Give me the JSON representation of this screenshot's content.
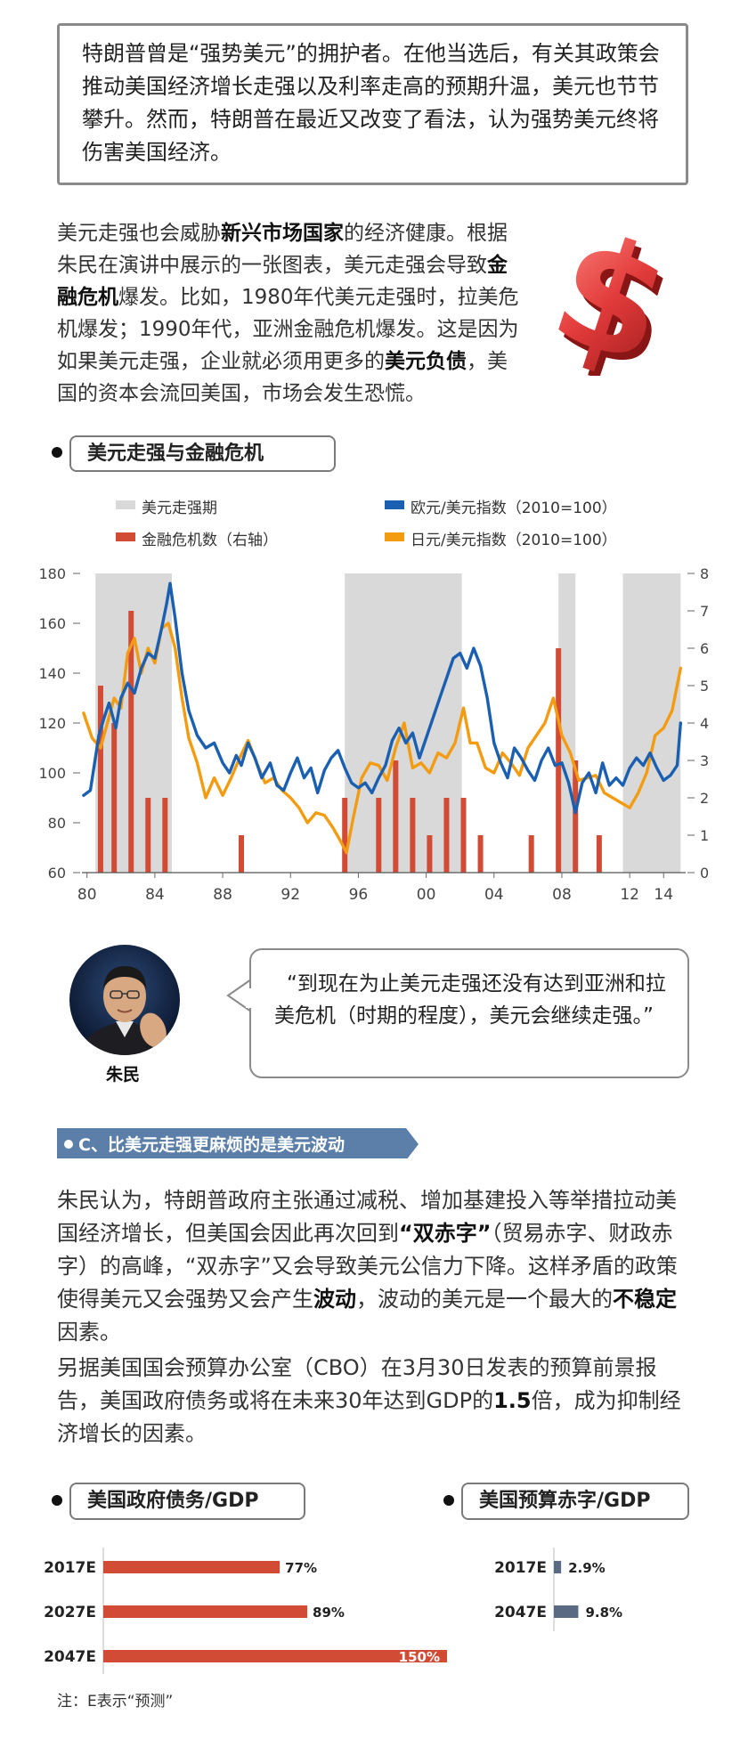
{
  "intro": {
    "text": "特朗普曾是“强势美元”的拥护者。在他当选后，有关其政策会推动美国经济增长走强以及利率走高的预期升温，美元也节节攀升。然而，特朗普在最近又改变了看法，认为强势美元终将伤害美国经济。"
  },
  "para1": {
    "s1": "美元走强也会威胁",
    "b1": "新兴市场国家",
    "s2": "的经济健康。根据朱民在演讲中展示的一张图表，美元走强会导致",
    "b2": "金融危机",
    "s3": "爆发。比如，1980年代美元走强时，拉美危机爆发；1990年代，亚洲金融危机爆发。这是因为如果美元走强，企业就必须用更多的",
    "b3": "美元负债",
    "s4": "，美国的资本会流回美国，市场会发生恐慌。"
  },
  "chart1_title": "美元走强与金融危机",
  "quote": {
    "text": "“到现在为止美元走强还没有达到亚洲和拉美危机（时期的程度），美元会继续走强。”",
    "name": "朱民"
  },
  "section_c": {
    "title": "C、比美元走强更麻烦的是美元波动"
  },
  "para2": {
    "s1": "朱民认为，特朗普政府主张通过减税、增加基建投入等举措拉动美国经济增长，但美国会因此再次回到",
    "b1": "“双赤字”",
    "s2": "（贸易赤字、财政赤字）的高峰，“双赤字”又会导致美元公信力下降。这样矛盾的政策使得美元又会强势又会产生",
    "b2": "波动",
    "s3": "，波动的美元是一个最大的",
    "b3": "不稳定",
    "s4": "因素。"
  },
  "para3": {
    "s1": "另据美国国会预算办公室（CBO）在3月30日发表的预算前景报告，美国政府债务或将在未来30年达到GDP的",
    "b1": "1.5",
    "s2": "倍，成为抑制经济增长的因素。"
  },
  "chart2_title": "美国政府债务/GDP",
  "chart3_title": "美国预算赤字/GDP",
  "note": "注：E表示“预测”",
  "colors": {
    "euro": "#1a5fb0",
    "yen": "#f39c12",
    "crisis": "#d14b35",
    "strong": "#d9d9d9",
    "banner": "#5b7fa8",
    "deficit": "#5a6a82"
  },
  "chart_data": [
    {
      "type": "line",
      "title": "美元走强与金融危机",
      "legend": [
        "美元走强期",
        "欧元/美元指数（2010=100）",
        "金融危机数（右轴）",
        "日元/美元指数（2010=100）"
      ],
      "x_ticks": [
        "80",
        "84",
        "88",
        "92",
        "96",
        "00",
        "04",
        "08",
        "12",
        "14"
      ],
      "x_tick_values": [
        1980,
        1984,
        1988,
        1992,
        1996,
        2000,
        2004,
        2008,
        2012,
        2014
      ],
      "xlim": [
        1979.7,
        2015.3
      ],
      "y_ticks": [
        "60",
        "80",
        "100",
        "120",
        "140",
        "160",
        "180"
      ],
      "ylim": [
        60,
        180
      ],
      "y2_ticks": [
        "0",
        "1",
        "2",
        "3",
        "4",
        "5",
        "6",
        "7",
        "8"
      ],
      "y2lim": [
        0,
        8
      ],
      "strong_dollar_periods": [
        [
          1980.5,
          1985.0
        ],
        [
          1995.2,
          2002.1
        ],
        [
          2007.8,
          2008.8
        ],
        [
          2011.6,
          2015.0
        ]
      ],
      "series": [
        {
          "name": "欧元/美元指数（2010=100）",
          "x": [
            1979.8,
            1980.2,
            1980.7,
            1981.0,
            1981.3,
            1981.7,
            1982.0,
            1982.4,
            1982.8,
            1983.2,
            1983.6,
            1984.0,
            1984.4,
            1984.7,
            1984.9,
            1985.2,
            1985.6,
            1986.0,
            1986.5,
            1987.0,
            1987.5,
            1988.0,
            1988.4,
            1988.8,
            1989.1,
            1989.5,
            1989.9,
            1990.3,
            1990.8,
            1991.2,
            1991.6,
            1992.0,
            1992.4,
            1992.8,
            1993.2,
            1993.6,
            1994.0,
            1994.4,
            1994.8,
            1995.2,
            1995.6,
            1996.0,
            1996.4,
            1996.8,
            1997.2,
            1997.6,
            1998.0,
            1998.4,
            1998.8,
            1999.2,
            1999.6,
            2000.0,
            2000.4,
            2000.8,
            2001.2,
            2001.6,
            2002.0,
            2002.4,
            2002.8,
            2003.2,
            2003.6,
            2004.0,
            2004.4,
            2004.8,
            2005.2,
            2005.6,
            2006.0,
            2006.4,
            2006.8,
            2007.2,
            2007.6,
            2008.0,
            2008.4,
            2008.8,
            2009.2,
            2009.6,
            2010.0,
            2010.4,
            2010.8,
            2011.2,
            2011.6,
            2012.0,
            2012.4,
            2012.8,
            2013.2,
            2013.6,
            2014.0,
            2014.4,
            2014.8,
            2015.0
          ],
          "y": [
            91,
            93,
            115,
            122,
            128,
            118,
            130,
            136,
            132,
            142,
            148,
            146,
            158,
            168,
            176,
            162,
            140,
            125,
            115,
            110,
            112,
            104,
            100,
            107,
            103,
            112,
            106,
            98,
            104,
            95,
            93,
            100,
            106,
            98,
            102,
            92,
            101,
            106,
            109,
            102,
            96,
            94,
            96,
            92,
            98,
            103,
            113,
            118,
            112,
            116,
            106,
            114,
            122,
            130,
            138,
            146,
            148,
            142,
            150,
            143,
            130,
            112,
            104,
            98,
            110,
            106,
            101,
            97,
            105,
            110,
            103,
            104,
            96,
            84,
            96,
            100,
            92,
            104,
            95,
            98,
            95,
            102,
            106,
            103,
            108,
            102,
            97,
            99,
            103,
            120
          ]
        },
        {
          "name": "日元/美元指数（2010=100）",
          "x": [
            1979.8,
            1980.3,
            1980.8,
            1981.2,
            1981.6,
            1982.0,
            1982.4,
            1982.8,
            1983.2,
            1983.6,
            1984.0,
            1984.4,
            1984.8,
            1985.2,
            1985.6,
            1986.0,
            1986.5,
            1987.0,
            1987.5,
            1988.0,
            1988.5,
            1989.0,
            1989.5,
            1990.0,
            1990.5,
            1991.0,
            1991.5,
            1992.0,
            1992.5,
            1993.0,
            1993.5,
            1994.0,
            1994.5,
            1995.0,
            1995.3,
            1995.7,
            1996.2,
            1996.7,
            1997.2,
            1997.7,
            1998.2,
            1998.7,
            1999.2,
            1999.7,
            2000.2,
            2000.7,
            2001.2,
            2001.7,
            2002.2,
            2002.6,
            2003.0,
            2003.5,
            2004.0,
            2004.5,
            2005.0,
            2005.5,
            2006.0,
            2006.5,
            2007.0,
            2007.5,
            2008.0,
            2008.5,
            2009.0,
            2009.5,
            2010.0,
            2010.5,
            2011.0,
            2011.5,
            2012.0,
            2012.5,
            2013.0,
            2013.5,
            2014.0,
            2014.5,
            2015.0
          ],
          "y": [
            124,
            114,
            110,
            120,
            130,
            126,
            148,
            154,
            140,
            150,
            144,
            158,
            160,
            150,
            130,
            114,
            104,
            90,
            98,
            91,
            98,
            106,
            113,
            104,
            96,
            98,
            93,
            90,
            86,
            80,
            84,
            83,
            78,
            72,
            68,
            82,
            98,
            104,
            103,
            97,
            110,
            120,
            102,
            104,
            100,
            108,
            106,
            112,
            126,
            112,
            112,
            102,
            100,
            108,
            104,
            99,
            110,
            115,
            120,
            130,
            115,
            108,
            97,
            98,
            99,
            92,
            90,
            88,
            86,
            92,
            100,
            115,
            118,
            125,
            142
          ]
        }
      ],
      "crisis_counts": {
        "name": "金融危机数（右轴）",
        "x": [
          1980.8,
          1981.6,
          1982.6,
          1983.6,
          1984.6,
          1989.1,
          1995.2,
          1997.2,
          1998.2,
          1999.2,
          2000.2,
          2001.2,
          2002.2,
          2003.2,
          2006.2,
          2007.8,
          2008.8,
          2010.2
        ],
        "y": [
          5,
          4,
          7,
          2,
          2,
          1,
          2,
          2,
          3,
          2,
          1,
          2,
          2,
          1,
          1,
          6,
          3,
          1
        ]
      }
    },
    {
      "type": "bar",
      "title": "美国政府债务/GDP",
      "categories": [
        "2017E",
        "2027E",
        "2047E"
      ],
      "values": [
        77,
        89,
        150
      ],
      "labels": [
        "77%",
        "89%",
        "150%"
      ],
      "xlim": [
        0,
        150
      ]
    },
    {
      "type": "bar",
      "title": "美国预算赤字/GDP",
      "categories": [
        "2017E",
        "2047E"
      ],
      "values": [
        2.9,
        9.8
      ],
      "labels": [
        "2.9%",
        "9.8%"
      ]
    }
  ]
}
